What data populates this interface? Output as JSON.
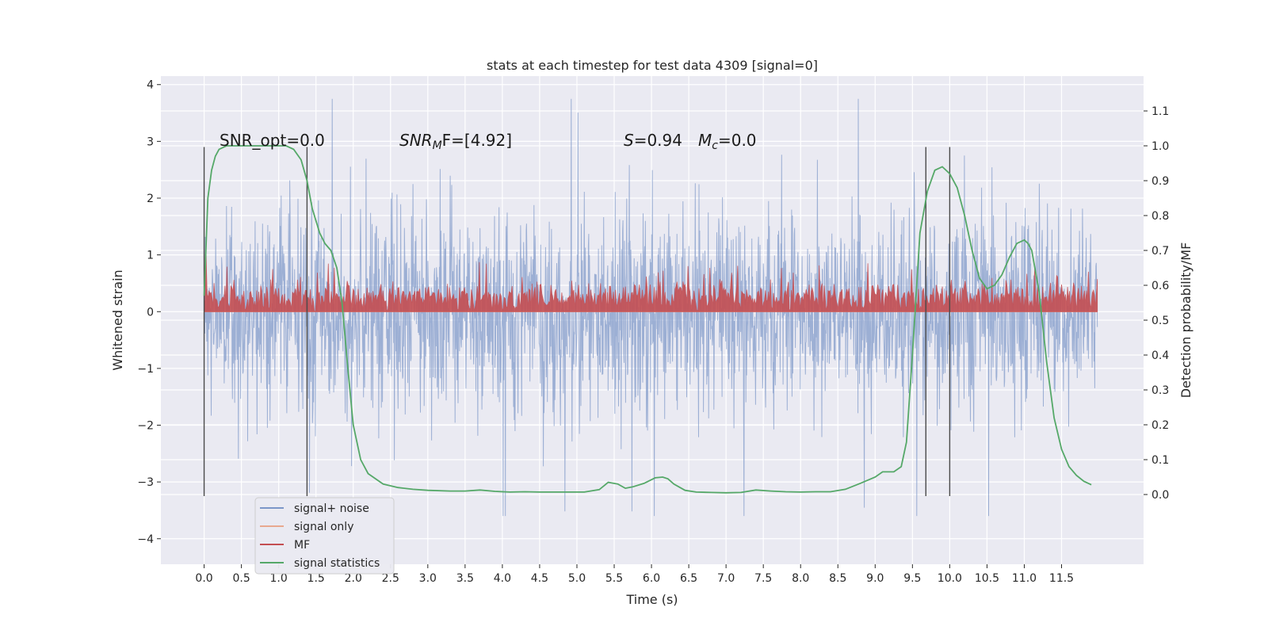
{
  "chart_data": {
    "type": "line",
    "title": "stats at each timestep for test data 4309 [signal=0]",
    "xlabel": "Time (s)",
    "ylabel": "Whitened strain",
    "y2label": "Detection probability/MF",
    "xlim": [
      -0.58,
      12.6
    ],
    "ylim": [
      -4.45,
      4.15
    ],
    "y2lim": [
      -0.2,
      1.2
    ],
    "x_ticks": [
      "0.0",
      "0.5",
      "1.0",
      "1.5",
      "2.0",
      "2.5",
      "3.0",
      "3.5",
      "4.0",
      "4.5",
      "5.0",
      "5.5",
      "6.0",
      "6.5",
      "7.0",
      "7.5",
      "8.0",
      "8.5",
      "9.0",
      "9.5",
      "10.0",
      "10.5",
      "11.0",
      "11.5"
    ],
    "y_ticks": [
      "−4",
      "−3",
      "−2",
      "−1",
      "0",
      "1",
      "2",
      "3",
      "4"
    ],
    "y2_ticks": [
      "0.0",
      "0.1",
      "0.2",
      "0.3",
      "0.4",
      "0.5",
      "0.6",
      "0.7",
      "0.8",
      "0.9",
      "1.0",
      "1.1"
    ],
    "grid": true,
    "legend_position": "bottom-left",
    "annotations": {
      "snr_opt": "SNR_opt=0.0",
      "snr_mf_sym": "SNR",
      "snr_mf_sub": "M",
      "snr_mf_rest": "F=[4.92]",
      "s_sym": "S",
      "s_rest": "=0.94",
      "mc_sym": "M",
      "mc_sub": "c",
      "mc_rest": "=0.0"
    },
    "vertical_markers": [
      0.0,
      1.38,
      9.68,
      10.0
    ],
    "series": [
      {
        "name": "signal+ noise",
        "color": "#7b96c8",
        "x_range": [
          0.0,
          11.98
        ],
        "band": [
          -1.4,
          1.7
        ],
        "spike_range": [
          -3.6,
          3.75
        ]
      },
      {
        "name": "signal only",
        "color": "#e8a88f",
        "values_description": "zero"
      },
      {
        "name": "MF",
        "color": "#c44e52",
        "x_range": [
          0.0,
          11.98
        ],
        "band": [
          0.0,
          0.55
        ],
        "peak": 1.0
      },
      {
        "name": "signal statistics",
        "color": "#55a868",
        "axis": "right",
        "x": [
          0.0,
          0.05,
          0.1,
          0.15,
          0.2,
          0.3,
          0.45,
          0.6,
          0.8,
          1.0,
          1.1,
          1.2,
          1.3,
          1.38,
          1.45,
          1.55,
          1.62,
          1.7,
          1.78,
          1.85,
          1.92,
          2.0,
          2.1,
          2.2,
          2.4,
          2.6,
          2.8,
          3.0,
          3.3,
          3.5,
          3.7,
          3.9,
          4.1,
          4.3,
          4.5,
          4.7,
          4.9,
          5.1,
          5.3,
          5.42,
          5.55,
          5.65,
          5.75,
          5.9,
          6.05,
          6.15,
          6.22,
          6.3,
          6.45,
          6.6,
          6.8,
          7.0,
          7.2,
          7.4,
          7.6,
          7.8,
          8.0,
          8.2,
          8.4,
          8.6,
          8.8,
          9.0,
          9.1,
          9.25,
          9.35,
          9.42,
          9.5,
          9.6,
          9.7,
          9.8,
          9.9,
          10.0,
          10.1,
          10.2,
          10.3,
          10.4,
          10.5,
          10.6,
          10.7,
          10.8,
          10.9,
          11.0,
          11.05,
          11.1,
          11.2,
          11.3,
          11.4,
          11.5,
          11.6,
          11.7,
          11.8,
          11.9
        ],
        "values": [
          0.57,
          0.85,
          0.93,
          0.97,
          0.99,
          1.0,
          1.0,
          1.0,
          1.0,
          1.0,
          1.0,
          0.99,
          0.96,
          0.9,
          0.82,
          0.75,
          0.72,
          0.7,
          0.65,
          0.55,
          0.38,
          0.2,
          0.1,
          0.06,
          0.03,
          0.02,
          0.015,
          0.012,
          0.01,
          0.01,
          0.013,
          0.009,
          0.007,
          0.008,
          0.007,
          0.007,
          0.007,
          0.007,
          0.014,
          0.035,
          0.03,
          0.018,
          0.022,
          0.032,
          0.048,
          0.05,
          0.045,
          0.03,
          0.012,
          0.007,
          0.006,
          0.005,
          0.006,
          0.013,
          0.01,
          0.008,
          0.007,
          0.008,
          0.008,
          0.015,
          0.032,
          0.05,
          0.065,
          0.065,
          0.08,
          0.15,
          0.4,
          0.75,
          0.87,
          0.93,
          0.94,
          0.92,
          0.88,
          0.8,
          0.7,
          0.62,
          0.59,
          0.6,
          0.63,
          0.68,
          0.72,
          0.73,
          0.72,
          0.7,
          0.58,
          0.38,
          0.22,
          0.13,
          0.08,
          0.055,
          0.038,
          0.028
        ]
      }
    ]
  }
}
